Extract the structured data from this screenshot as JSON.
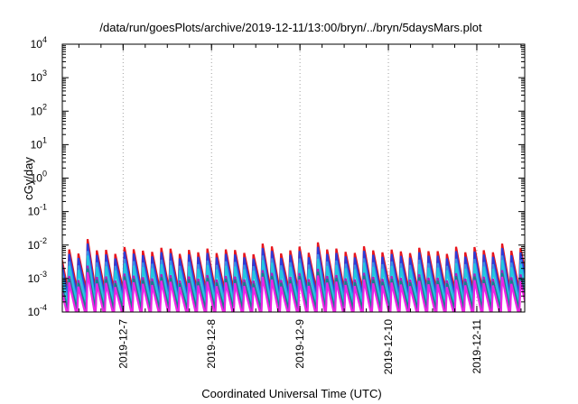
{
  "chart_data": {
    "type": "line",
    "title": "/data/run/goesPlots/archive/2019-12-11/13:00/bryn/../bryn/5daysMars.plot",
    "xlabel": "Coordinated Universal Time (UTC)",
    "ylabel": "cGy/day",
    "y_scale": "log",
    "ylim": [
      0.0001,
      10000
    ],
    "y_ticks": [
      {
        "value": 0.0001,
        "base": "10",
        "exp": "-4"
      },
      {
        "value": 0.001,
        "base": "10",
        "exp": "-3"
      },
      {
        "value": 0.01,
        "base": "10",
        "exp": "-2"
      },
      {
        "value": 0.1,
        "base": "10",
        "exp": "-1"
      },
      {
        "value": 1,
        "base": "10",
        "exp": "0"
      },
      {
        "value": 10,
        "base": "10",
        "exp": "1"
      },
      {
        "value": 100,
        "base": "10",
        "exp": "2"
      },
      {
        "value": 1000,
        "base": "10",
        "exp": "3"
      },
      {
        "value": 10000,
        "base": "10",
        "exp": "4"
      }
    ],
    "xlim": [
      "2019-12-06T07:30",
      "2019-12-11T13:00"
    ],
    "x_ticks": [
      {
        "value": "2019-12-07T00:00",
        "label": "2019-12-7"
      },
      {
        "value": "2019-12-08T00:00",
        "label": "2019-12-8"
      },
      {
        "value": "2019-12-09T00:00",
        "label": "2019-12-9"
      },
      {
        "value": "2019-12-10T00:00",
        "label": "2019-12-10"
      },
      {
        "value": "2019-12-11T00:00",
        "label": "2019-12-11"
      }
    ],
    "grid": "vertical dotted at x ticks",
    "pattern": {
      "sawtooth_period_hours": 2.5,
      "series": [
        {
          "color": "#e8141c",
          "peak": 0.0068,
          "trough": 0.00045
        },
        {
          "color": "#2b3cd9",
          "peak": 0.005,
          "trough": 0.0003
        },
        {
          "color": "#3a8ee8",
          "peak": 0.003,
          "trough": 0.0002
        },
        {
          "color": "#22c8e0",
          "peak": 0.0022,
          "trough": 0.00015
        },
        {
          "color": "#ab1fc0",
          "peak": 0.0011,
          "trough": 9e-05
        },
        {
          "color": "#17808a",
          "peak": 0.0009,
          "trough": 0.00012
        },
        {
          "color": "#ee22e6",
          "peak": 0.0007,
          "trough": 7e-05
        }
      ],
      "notable_peaks": [
        {
          "x": "2019-12-06T15:30",
          "y": 0.015
        },
        {
          "x": "2019-12-08T14:30",
          "y": 0.011
        },
        {
          "x": "2019-12-09T04:30",
          "y": 0.012
        },
        {
          "x": "2019-12-11T06:30",
          "y": 0.011
        }
      ]
    }
  }
}
